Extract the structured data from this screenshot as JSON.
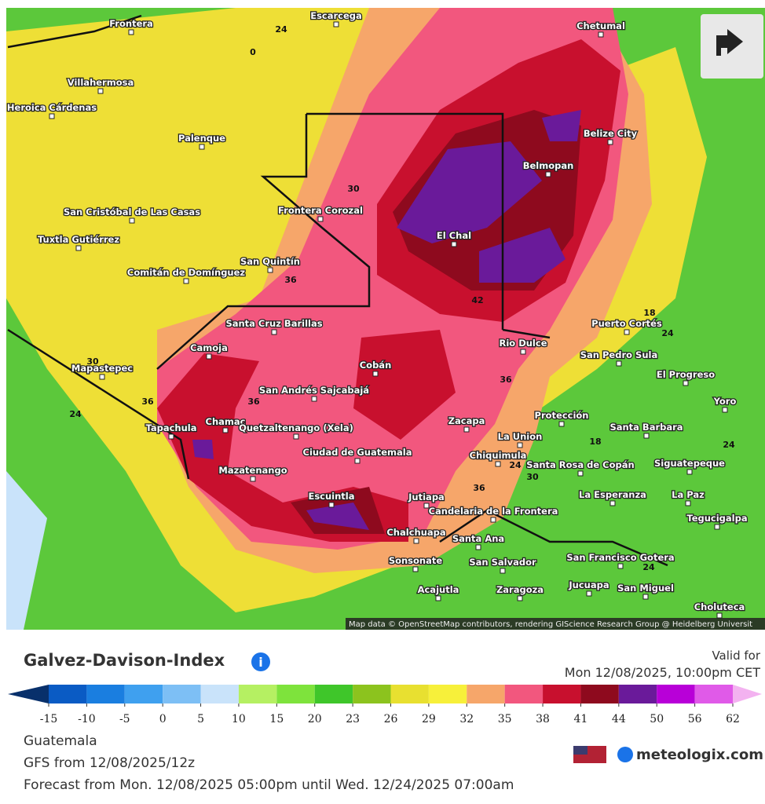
{
  "map": {
    "cities": [
      "Frontera",
      "Escarcega",
      "Chetumal",
      "Villahermosa",
      "Heroica Cárdenas",
      "Palenque",
      "Belize City",
      "Belmopan",
      "San Cristóbal de Las Casas",
      "Tuxtla Gutiérrez",
      "Frontera Corozal",
      "El Chal",
      "Comitán de Domínguez",
      "San Quintín",
      "Santa Cruz Barillas",
      "Puerto Cortés",
      "Rio Dulce",
      "San Pedro Sula",
      "Camoja",
      "Mapastepec",
      "Cobán",
      "El Progreso",
      "San Andrés Sajcabajá",
      "Yoro",
      "Protección",
      "Tapachula",
      "Chamac",
      "Quetzaltenango (Xela)",
      "Zacapa",
      "Santa Barbara",
      "La Union",
      "Ciudad de Guatemala",
      "Chiquimula",
      "Santa Rosa de Copán",
      "Siguatepeque",
      "Mazatenango",
      "Escuintla",
      "Jutiapa",
      "La Esperanza",
      "La Paz",
      "Tegucigalpa",
      "Candelaria de la Frontera",
      "Chalchuapa",
      "Santa Ana",
      "Sonsonate",
      "San Salvador",
      "San Francisco Gotera",
      "Acajutla",
      "Zaragoza",
      "Jucuapa",
      "San Miguel",
      "Choluteca"
    ],
    "contour_labels": [
      24,
      0,
      30,
      36,
      42,
      18,
      24,
      30,
      36,
      36,
      36,
      24,
      18,
      24,
      30,
      24,
      24,
      36
    ],
    "attribution": "Map data © OpenStreetMap contributors, rendering GIScience Research Group @ Heidelberg Universit"
  },
  "header": {
    "title": "Galvez-Davison-Index",
    "valid_label": "Valid for",
    "valid_time": "Mon 12/08/2025, 10:00pm CET"
  },
  "colorbar": {
    "ticks": [
      -15,
      -10,
      -5,
      0,
      5,
      10,
      15,
      20,
      23,
      26,
      29,
      32,
      35,
      38,
      41,
      44,
      50,
      56,
      62
    ],
    "colors": [
      "#08306b",
      "#0a5bc4",
      "#1a7ee0",
      "#3fa0ef",
      "#7dbff5",
      "#c9e3fa",
      "#b5f062",
      "#7ee33c",
      "#3fc62a",
      "#8cc31e",
      "#e8e030",
      "#f7f03a",
      "#f6a66a",
      "#f2577e",
      "#c8102e",
      "#8e0a1e",
      "#6a1a9a",
      "#b800d8",
      "#e05ae8",
      "#f3b2f0"
    ]
  },
  "footer": {
    "region": "Guatemala",
    "model": "GFS from 12/08/2025/12z",
    "forecast": "Forecast from Mon. 12/08/2025 05:00pm until Wed. 12/24/2025 07:00am",
    "brand": "meteologix.com"
  }
}
